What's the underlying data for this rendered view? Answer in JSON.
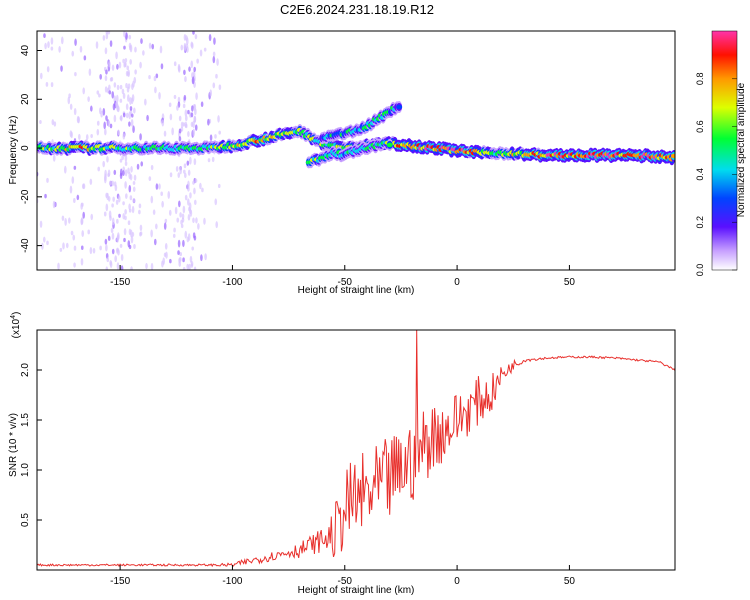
{
  "title": "C2E6.2024.231.18.19.R12",
  "chart_data": [
    {
      "type": "heatmap",
      "xlabel": "Height of straight line (km)",
      "ylabel": "Frequency (Hz)",
      "xlim": [
        -187,
        97
      ],
      "ylim": [
        -50,
        48
      ],
      "x_ticks": [
        -150,
        -100,
        -50,
        0,
        50
      ],
      "x_tick_labels": [
        "-150",
        "-100",
        "-50",
        "0",
        "50"
      ],
      "y_ticks": [
        -40,
        -20,
        0,
        20,
        40
      ],
      "y_tick_labels": [
        "-40",
        "-20",
        "0",
        "20",
        "40"
      ],
      "colorbar": {
        "label": "Normalized spectral amplitude",
        "range": [
          0,
          1
        ],
        "ticks": [
          0.0,
          0.2,
          0.4,
          0.6,
          0.8
        ],
        "tick_labels": [
          "0.0",
          "0.2",
          "0.4",
          "0.6",
          "0.8"
        ]
      },
      "series": [
        {
          "description_points": "main ridge",
          "x": [
            -187,
            -170,
            -150,
            -130,
            -110,
            -100,
            -90,
            -80,
            -70,
            -60,
            -50,
            -40,
            -30,
            -20,
            -10,
            0,
            10,
            20,
            40,
            60,
            80,
            97
          ],
          "y": [
            0,
            0,
            0,
            0,
            0,
            1,
            3,
            5,
            7,
            2,
            0,
            1,
            2,
            1,
            0,
            -1,
            -2,
            -2,
            -3,
            -3,
            -3,
            -4
          ],
          "amplitude": [
            0.5,
            0.8,
            0.6,
            0.5,
            0.6,
            0.7,
            0.8,
            0.7,
            0.6,
            0.6,
            0.7,
            0.7,
            0.8,
            0.9,
            0.9,
            0.9,
            0.8,
            0.6,
            0.9,
            0.95,
            0.9,
            0.85
          ]
        },
        {
          "description_points": "upper branch",
          "x": [
            -60,
            -50,
            -40,
            -35,
            -30,
            -25
          ],
          "y": [
            4,
            6,
            9,
            12,
            15,
            18
          ],
          "amplitude": [
            0.4,
            0.5,
            0.5,
            0.6,
            0.5,
            0.3
          ]
        },
        {
          "description_points": "lower branch",
          "x": [
            -66,
            -60,
            -55,
            -50,
            -45,
            -40,
            -35,
            -30
          ],
          "y": [
            -6,
            -4,
            -2,
            -3,
            -1,
            0,
            1,
            2
          ],
          "amplitude": [
            0.6,
            0.6,
            0.5,
            0.5,
            0.6,
            0.5,
            0.5,
            0.6
          ]
        }
      ]
    },
    {
      "type": "line",
      "xlabel": "Height of straight line (km)",
      "ylabel": "SNR (10 * v/v)",
      "y_multiplier_label": "(x10",
      "y_multiplier_exp": "4",
      "xlim": [
        -187,
        97
      ],
      "ylim": [
        0,
        2.4
      ],
      "x_ticks": [
        -150,
        -100,
        -50,
        0,
        50
      ],
      "x_tick_labels": [
        "-150",
        "-100",
        "-50",
        "0",
        "50"
      ],
      "y_ticks": [
        0.5,
        1.0,
        1.5,
        2.0
      ],
      "y_tick_labels": [
        "0.5",
        "1.0",
        "1.5",
        "2.0"
      ],
      "color": "#e8302c",
      "series": [
        {
          "name": "",
          "x": [
            -187,
            -170,
            -150,
            -130,
            -110,
            -100,
            -90,
            -80,
            -75,
            -70,
            -65,
            -60,
            -55,
            -50,
            -45,
            -40,
            -35,
            -30,
            -25,
            -20,
            -15,
            -10,
            -5,
            0,
            5,
            10,
            15,
            20,
            25,
            30,
            40,
            50,
            60,
            70,
            80,
            90,
            97
          ],
          "y": [
            0.05,
            0.05,
            0.05,
            0.05,
            0.05,
            0.05,
            0.1,
            0.15,
            0.18,
            0.2,
            0.25,
            0.3,
            0.35,
            0.6,
            0.7,
            0.75,
            0.8,
            0.9,
            1.0,
            1.1,
            1.25,
            1.35,
            1.4,
            1.5,
            1.6,
            1.7,
            1.75,
            1.95,
            2.05,
            2.1,
            2.12,
            2.13,
            2.13,
            2.12,
            2.1,
            2.08,
            2.0
          ],
          "noise": [
            0.01,
            0.01,
            0.01,
            0.01,
            0.01,
            0.02,
            0.04,
            0.05,
            0.06,
            0.08,
            0.1,
            0.12,
            0.25,
            0.4,
            0.45,
            0.45,
            0.45,
            0.45,
            0.4,
            0.45,
            0.4,
            0.35,
            0.3,
            0.3,
            0.25,
            0.25,
            0.2,
            0.1,
            0.05,
            0.02,
            0.01,
            0.01,
            0.01,
            0.01,
            0.01,
            0.01,
            0.01
          ]
        }
      ],
      "peak": {
        "x": -18,
        "y": 2.4
      }
    }
  ]
}
